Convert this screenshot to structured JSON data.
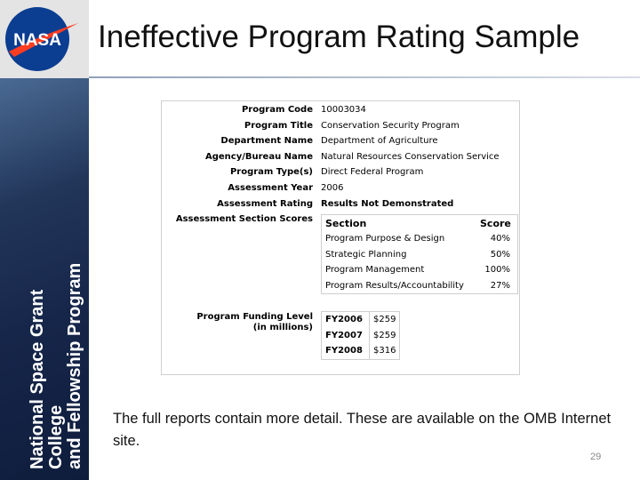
{
  "logo": {
    "text": "NASA"
  },
  "sidebar": {
    "lines": [
      "National Space Grant College",
      "and Fellowship Program"
    ]
  },
  "header": {
    "title": "Ineffective Program Rating Sample"
  },
  "table": {
    "rows": [
      {
        "label": "Program Code",
        "value": "10003034"
      },
      {
        "label": "Program Title",
        "value": "Conservation Security Program"
      },
      {
        "label": "Department Name",
        "value": "Department of Agriculture"
      },
      {
        "label": "Agency/Bureau Name",
        "value": "Natural Resources Conservation Service"
      },
      {
        "label": "Program Type(s)",
        "value": "Direct Federal Program"
      },
      {
        "label": "Assessment Year",
        "value": "2006"
      },
      {
        "label": "Assessment Rating",
        "value": "Results Not Demonstrated"
      }
    ],
    "scores_label": "Assessment Section Scores",
    "scores": {
      "header": [
        "Section",
        "Score"
      ],
      "rows": [
        [
          "Program Purpose & Design",
          "40%"
        ],
        [
          "Strategic Planning",
          "50%"
        ],
        [
          "Program Management",
          "100%"
        ],
        [
          "Program Results/Accountability",
          "27%"
        ]
      ]
    },
    "funding_label": [
      "Program Funding Level",
      "(in millions)"
    ],
    "funding": [
      [
        "FY2006",
        "$259"
      ],
      [
        "FY2007",
        "$259"
      ],
      [
        "FY2008",
        "$316"
      ]
    ]
  },
  "body": {
    "text": "The full reports contain more detail.  These are available on the OMB Internet site."
  },
  "footer": {
    "page": "29"
  }
}
